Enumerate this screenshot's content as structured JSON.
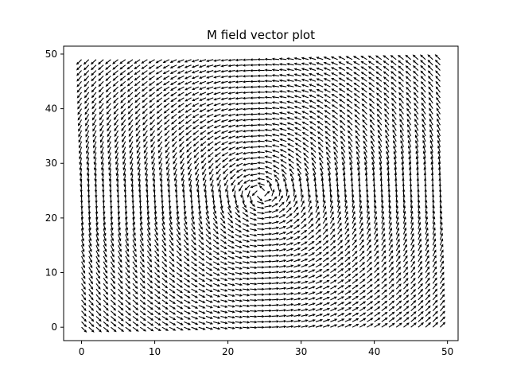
{
  "chart_data": {
    "type": "quiver",
    "title": "M field vector plot",
    "xlabel": "",
    "ylabel": "",
    "xlim": [
      -2.45,
      51.45
    ],
    "ylim": [
      -2.45,
      51.45
    ],
    "xticks": [
      0,
      10,
      20,
      30,
      40,
      50
    ],
    "yticks": [
      0,
      10,
      20,
      30,
      40,
      50
    ],
    "grid": false,
    "legend": "none",
    "field": {
      "description": "counter-clockwise vortex, unit-length arrows on a regular grid",
      "grid_x": [
        0,
        49
      ],
      "grid_y": [
        0,
        49
      ],
      "grid_step": 1,
      "center": [
        24.5,
        24.5
      ],
      "rotation": "counter-clockwise",
      "vector_length": 1
    },
    "colors": {
      "arrow": "#000000",
      "axes": "#000000",
      "background": "#ffffff"
    }
  }
}
